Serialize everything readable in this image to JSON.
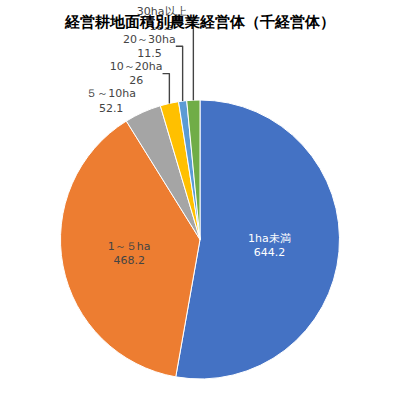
{
  "chart_data": {
    "type": "pie",
    "title": "経営耕地面積別農業経営体（千経営体）",
    "categories": [
      "1ha未満",
      "1～５ha",
      "５～10ha",
      "10～20ha",
      "20～30ha",
      "30ha以上"
    ],
    "values": [
      644.2,
      468.2,
      52.1,
      26.0,
      11.5,
      18.5
    ],
    "colors": [
      "#4472C4",
      "#ED7D31",
      "#A5A5A5",
      "#FFC000",
      "#5B9BD5",
      "#70AD47"
    ],
    "data_labels": true
  }
}
